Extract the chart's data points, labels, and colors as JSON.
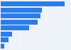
{
  "values": [
    3400,
    2200,
    2100,
    1950,
    1500,
    600,
    420,
    200
  ],
  "bar_color": "#2b7de9",
  "background_color": "#eef2f9",
  "plot_background": "#eef2f9",
  "xlim": [
    0,
    3700
  ],
  "bar_height": 0.82,
  "grid_lines": [
    1000,
    2000,
    3000
  ],
  "grid_color": "#ffffff",
  "grid_alpha": 0.9,
  "grid_lw": 0.6
}
